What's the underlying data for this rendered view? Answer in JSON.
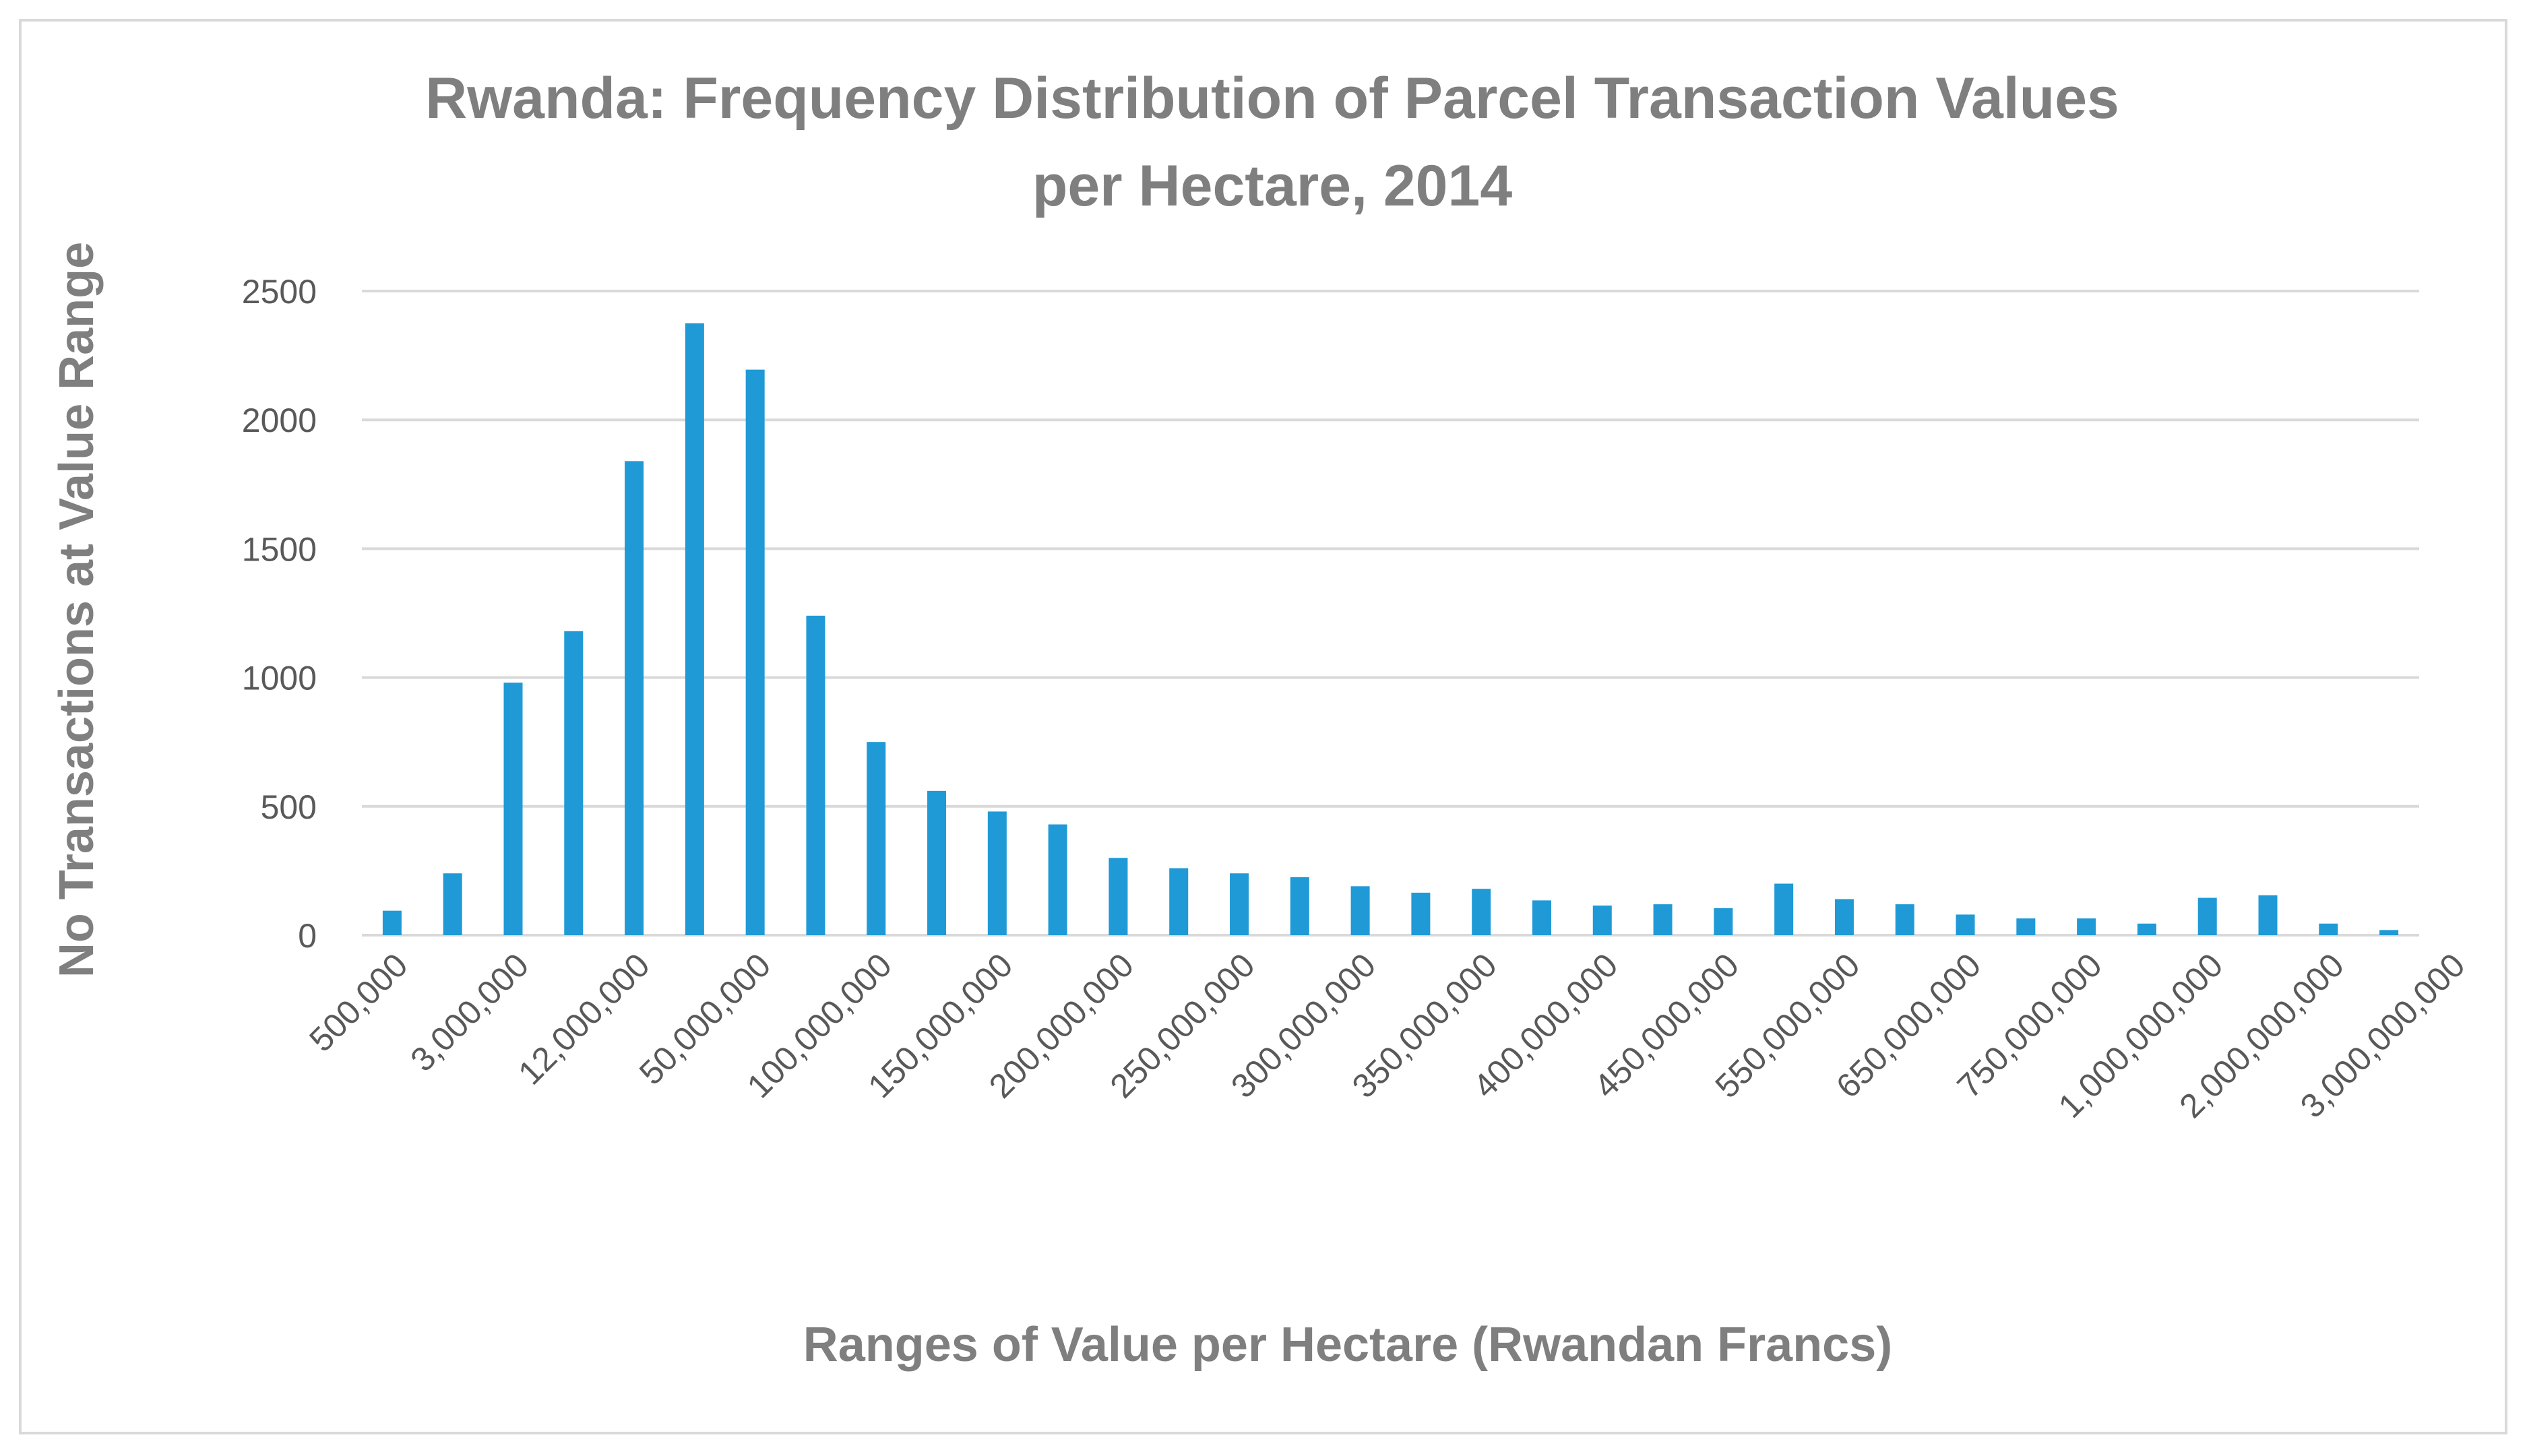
{
  "chart_data": {
    "type": "bar",
    "title_lines": [
      "Rwanda: Frequency Distribution of Parcel Transaction Values",
      "per Hectare, 2014"
    ],
    "xlabel": "Ranges of Value per Hectare (Rwandan Francs)",
    "ylabel": "No Transactions at Value Range",
    "ylim": [
      0,
      2500
    ],
    "yticks": [
      "0",
      "500",
      "1000",
      "1500",
      "2000",
      "2500"
    ],
    "grid": true,
    "legend": "none",
    "bar_color": "#1f9ad6",
    "x_tick_labels": [
      "500,000",
      "3,000,000",
      "12,000,000",
      "50,000,000",
      "100,000,000",
      "150,000,000",
      "200,000,000",
      "250,000,000",
      "300,000,000",
      "350,000,000",
      "400,000,000",
      "450,000,000",
      "550,000,000",
      "650,000,000",
      "750,000,000",
      "1,000,000,000",
      "2,000,000,000",
      "3,000,000,000"
    ],
    "values": [
      95,
      240,
      980,
      1180,
      1840,
      2375,
      2195,
      1240,
      750,
      560,
      480,
      430,
      300,
      260,
      240,
      225,
      190,
      165,
      180,
      135,
      115,
      120,
      105,
      200,
      140,
      120,
      80,
      65,
      65,
      45,
      145,
      155,
      45,
      20
    ]
  }
}
